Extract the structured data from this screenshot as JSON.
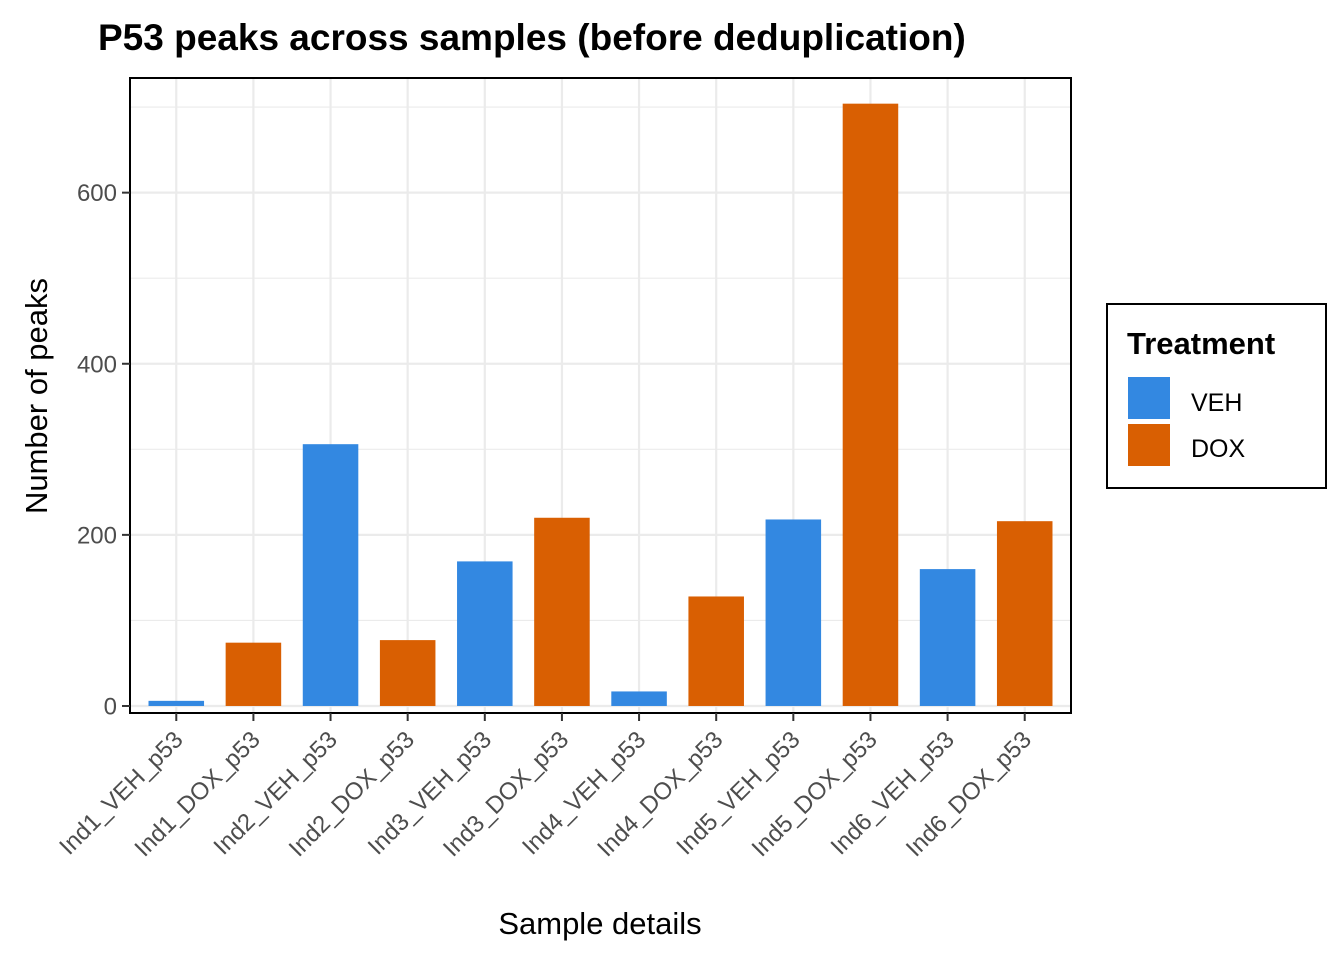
{
  "chart_data": {
    "type": "bar",
    "title": "P53 peaks across samples (before deduplication)",
    "xlabel": "Sample details",
    "ylabel": "Number of peaks",
    "categories": [
      "Ind1_VEH_p53",
      "Ind1_DOX_p53",
      "Ind2_VEH_p53",
      "Ind2_DOX_p53",
      "Ind3_VEH_p53",
      "Ind3_DOX_p53",
      "Ind4_VEH_p53",
      "Ind4_DOX_p53",
      "Ind5_VEH_p53",
      "Ind5_DOX_p53",
      "Ind6_VEH_p53",
      "Ind6_DOX_p53"
    ],
    "values": [
      6,
      74,
      306,
      77,
      169,
      220,
      17,
      128,
      218,
      704,
      160,
      216
    ],
    "treatment": [
      "VEH",
      "DOX",
      "VEH",
      "DOX",
      "VEH",
      "DOX",
      "VEH",
      "DOX",
      "VEH",
      "DOX",
      "VEH",
      "DOX"
    ],
    "ylim": [
      -8.2,
      734
    ],
    "yticks": [
      0,
      200,
      400,
      600
    ],
    "grid": true,
    "legend": {
      "title": "Treatment",
      "placement": "right",
      "entries": [
        {
          "label": "VEH",
          "color": "#3388e1"
        },
        {
          "label": "DOX",
          "color": "#d95f02"
        }
      ]
    },
    "colors": {
      "VEH": "#3388e1",
      "DOX": "#d95f02"
    }
  }
}
